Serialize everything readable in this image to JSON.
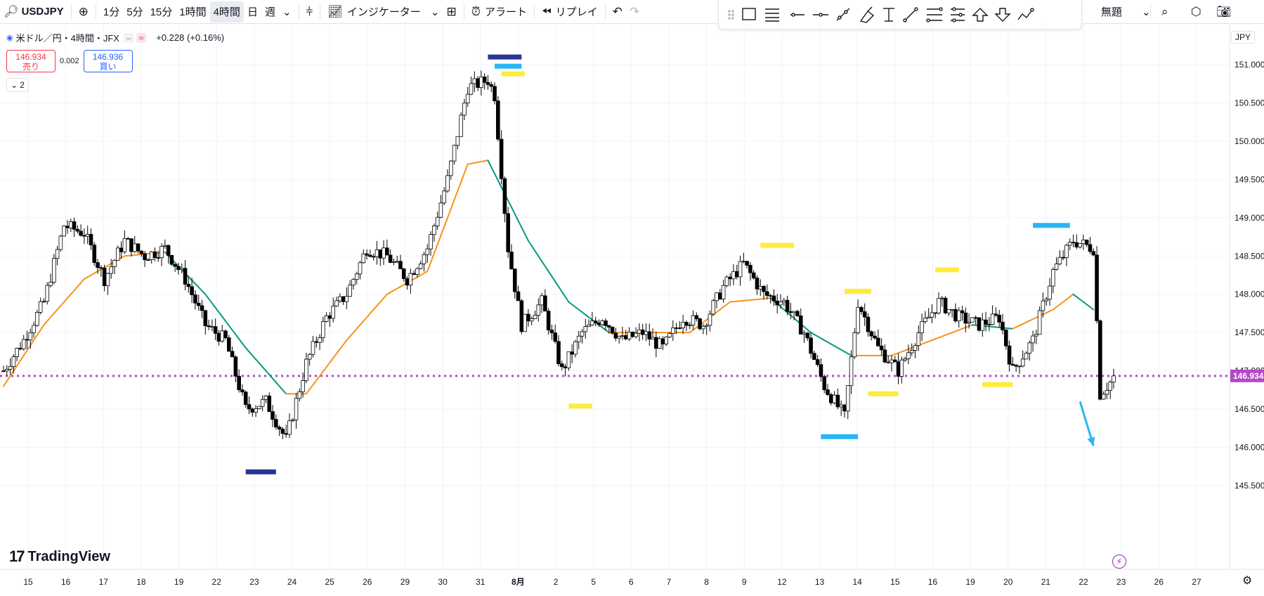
{
  "toolbar": {
    "symbol": "USDJPY",
    "intervals": [
      "1分",
      "5分",
      "15分",
      "1時間",
      "4時間",
      "日",
      "週"
    ],
    "active_interval": "4時間",
    "indicators_label": "インジケーター",
    "alert_label": "アラート",
    "replay_label": "リプレイ",
    "mode_label": "無題"
  },
  "legend": {
    "title": "米ドル／円・4時間・JFX",
    "change": "+0.228 (+0.16%)",
    "sell_price": "146.934",
    "sell_label": "売り",
    "spread": "0.002",
    "buy_price": "146.936",
    "buy_label": "買い",
    "collapsed_count": "2"
  },
  "branding": {
    "watermark": "TradingView"
  },
  "price_axis": {
    "currency": "JPY",
    "current_price": "146.934"
  },
  "colors": {
    "bull_body": "#ffffff",
    "bear_body": "#000000",
    "ma_up": "#f7931a",
    "ma_down": "#089981",
    "price_line": "#b548c6",
    "marker_yellow": "#ffeb3b",
    "marker_cyan": "#29b6f6",
    "marker_navy": "#283593"
  },
  "chart_data": {
    "type": "candlestick",
    "ylim": [
      145.36,
      151.28
    ],
    "y_ticks": [
      "145.500",
      "146.000",
      "146.500",
      "147.000",
      "147.500",
      "148.000",
      "148.500",
      "149.000",
      "149.500",
      "150.000",
      "150.500",
      "151.000"
    ],
    "x_labels": [
      "15",
      "16",
      "17",
      "18",
      "19",
      "22",
      "23",
      "24",
      "25",
      "26",
      "29",
      "30",
      "31",
      "8月",
      "2",
      "5",
      "6",
      "7",
      "8",
      "9",
      "12",
      "13",
      "14",
      "15",
      "16",
      "19",
      "20",
      "21",
      "22",
      "23",
      "26",
      "27"
    ],
    "current_price": 146.934,
    "ohlc_keypoints": [
      [
        0,
        147.0
      ],
      [
        6,
        147.4
      ],
      [
        12,
        147.9
      ],
      [
        18,
        148.9
      ],
      [
        24,
        148.8
      ],
      [
        30,
        148.2
      ],
      [
        36,
        148.7
      ],
      [
        42,
        148.5
      ],
      [
        48,
        148.6
      ],
      [
        54,
        148.2
      ],
      [
        60,
        147.6
      ],
      [
        66,
        147.4
      ],
      [
        72,
        146.5
      ],
      [
        78,
        146.6
      ],
      [
        84,
        146.1
      ],
      [
        90,
        147.1
      ],
      [
        96,
        147.7
      ],
      [
        102,
        148.0
      ],
      [
        108,
        148.6
      ],
      [
        114,
        148.5
      ],
      [
        120,
        148.2
      ],
      [
        126,
        148.6
      ],
      [
        132,
        149.5
      ],
      [
        138,
        150.7
      ],
      [
        144,
        150.8
      ],
      [
        146,
        150.6
      ],
      [
        150,
        148.6
      ],
      [
        154,
        147.6
      ],
      [
        160,
        147.9
      ],
      [
        166,
        147.0
      ],
      [
        172,
        147.5
      ],
      [
        178,
        147.7
      ],
      [
        184,
        147.4
      ],
      [
        190,
        147.5
      ],
      [
        196,
        147.3
      ],
      [
        202,
        147.7
      ],
      [
        208,
        147.6
      ],
      [
        214,
        148.1
      ],
      [
        220,
        148.4
      ],
      [
        226,
        148.0
      ],
      [
        232,
        147.9
      ],
      [
        238,
        147.5
      ],
      [
        244,
        146.8
      ],
      [
        250,
        146.4
      ],
      [
        254,
        147.9
      ],
      [
        260,
        147.3
      ],
      [
        266,
        147.0
      ],
      [
        272,
        147.5
      ],
      [
        278,
        147.9
      ],
      [
        284,
        147.7
      ],
      [
        290,
        147.6
      ],
      [
        296,
        147.7
      ],
      [
        300,
        147.0
      ],
      [
        306,
        147.4
      ],
      [
        312,
        148.3
      ],
      [
        318,
        148.7
      ],
      [
        324,
        148.6
      ],
      [
        326,
        146.7
      ],
      [
        330,
        146.9
      ]
    ],
    "ma_keypoints": [
      [
        0,
        146.8
      ],
      [
        12,
        147.6
      ],
      [
        24,
        148.2
      ],
      [
        36,
        148.5
      ],
      [
        48,
        148.55
      ],
      [
        60,
        148.0
      ],
      [
        72,
        147.3
      ],
      [
        84,
        146.7
      ],
      [
        90,
        146.7
      ],
      [
        102,
        147.4
      ],
      [
        114,
        148.0
      ],
      [
        126,
        148.3
      ],
      [
        138,
        149.7
      ],
      [
        144,
        149.75
      ],
      [
        156,
        148.7
      ],
      [
        168,
        147.9
      ],
      [
        180,
        147.5
      ],
      [
        192,
        147.5
      ],
      [
        204,
        147.5
      ],
      [
        216,
        147.9
      ],
      [
        228,
        147.95
      ],
      [
        240,
        147.5
      ],
      [
        252,
        147.2
      ],
      [
        264,
        147.2
      ],
      [
        276,
        147.4
      ],
      [
        288,
        147.6
      ],
      [
        300,
        147.55
      ],
      [
        312,
        147.8
      ],
      [
        318,
        148.0
      ],
      [
        324,
        147.8
      ]
    ],
    "annotations": [
      {
        "color": "#283593",
        "x": [
          144,
          154
        ],
        "y": 151.1
      },
      {
        "color": "#283593",
        "x": [
          72,
          81
        ],
        "y": 145.68
      },
      {
        "color": "#29b6f6",
        "x": [
          146,
          154
        ],
        "y": 150.98
      },
      {
        "color": "#ffeb3b",
        "x": [
          148,
          155
        ],
        "y": 150.88
      },
      {
        "color": "#ffeb3b",
        "x": [
          168,
          175
        ],
        "y": 146.54
      },
      {
        "color": "#ffeb3b",
        "x": [
          225,
          235
        ],
        "y": 148.64
      },
      {
        "color": "#ffeb3b",
        "x": [
          250,
          258
        ],
        "y": 148.04
      },
      {
        "color": "#ffeb3b",
        "x": [
          257,
          266
        ],
        "y": 146.7
      },
      {
        "color": "#ffeb3b",
        "x": [
          277,
          284
        ],
        "y": 148.32
      },
      {
        "color": "#ffeb3b",
        "x": [
          291,
          300
        ],
        "y": 146.82
      },
      {
        "color": "#29b6f6",
        "x": [
          243,
          254
        ],
        "y": 146.14
      },
      {
        "color": "#29b6f6",
        "x": [
          306,
          317
        ],
        "y": 148.9
      }
    ],
    "arrow": {
      "color": "#29b6f6",
      "from": [
        320,
        146.6
      ],
      "to": [
        324,
        146.02
      ]
    }
  }
}
